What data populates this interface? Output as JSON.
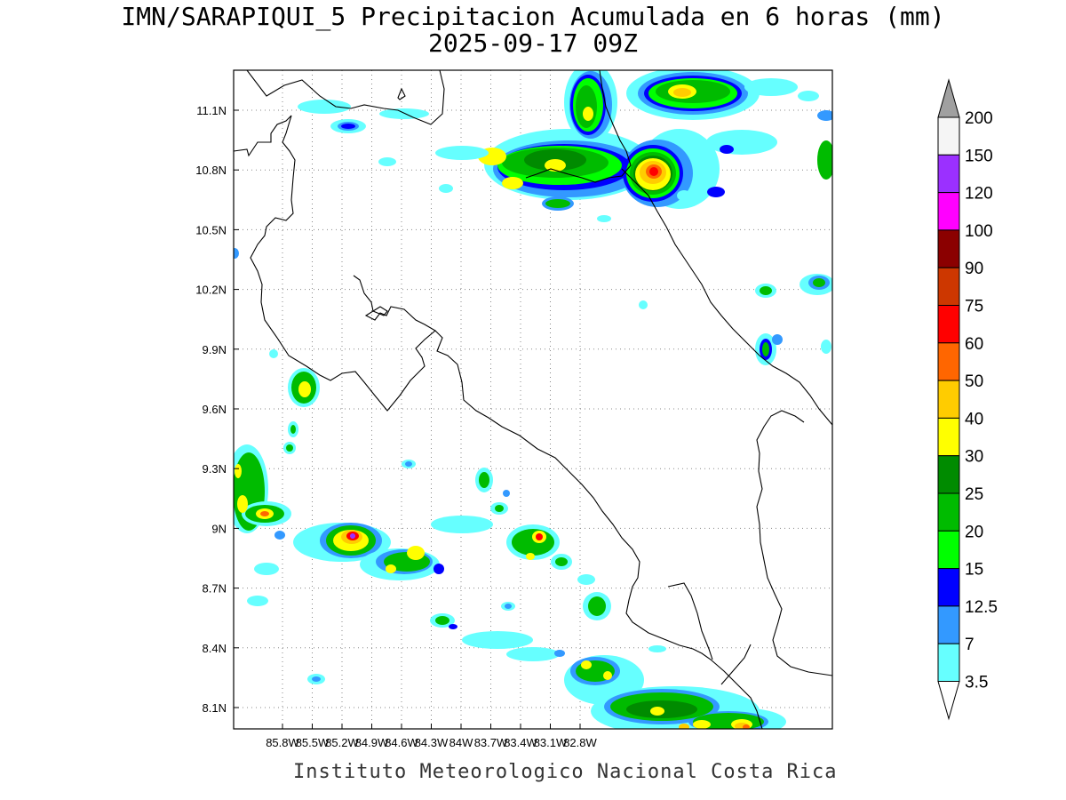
{
  "title": "IMN/SARAPIQUI_5 Precipitacion Acumulada en 6 horas (mm)",
  "subtitle": "2025-09-17 09Z",
  "footer": "Instituto Meteorologico Nacional Costa Rica",
  "map": {
    "lon_range": [
      -86.0,
      -83.0
    ],
    "lat_range": [
      8.0,
      11.3
    ],
    "lon_ticks": [
      "85.8W",
      "85.5W",
      "85.2W",
      "84.9W",
      "84.6W",
      "84.3W",
      "84W",
      "83.7W",
      "83.4W",
      "83.1W",
      "82.8W"
    ],
    "lat_ticks": [
      "11.1N",
      "10.8N",
      "10.5N",
      "10.2N",
      "9.9N",
      "9.6N",
      "9.3N",
      "9N",
      "8.7N",
      "8.4N",
      "8.1N"
    ],
    "grid": true
  },
  "colorbar": {
    "labels": [
      "200",
      "150",
      "120",
      "100",
      "90",
      "75",
      "60",
      "50",
      "40",
      "30",
      "25",
      "20",
      "15",
      "12.5",
      "7",
      "3.5"
    ],
    "colors": [
      "#f5f5f5",
      "#9b30ff",
      "#ff00ff",
      "#8b0000",
      "#cd3700",
      "#ff0000",
      "#ff6600",
      "#ffcc00",
      "#ffff00",
      "#008b00",
      "#00bb00",
      "#00ff00",
      "#0000ff",
      "#3399ff",
      "#66ffff"
    ],
    "over_color": "#a0a0a0",
    "under_color": "#ffffff"
  }
}
